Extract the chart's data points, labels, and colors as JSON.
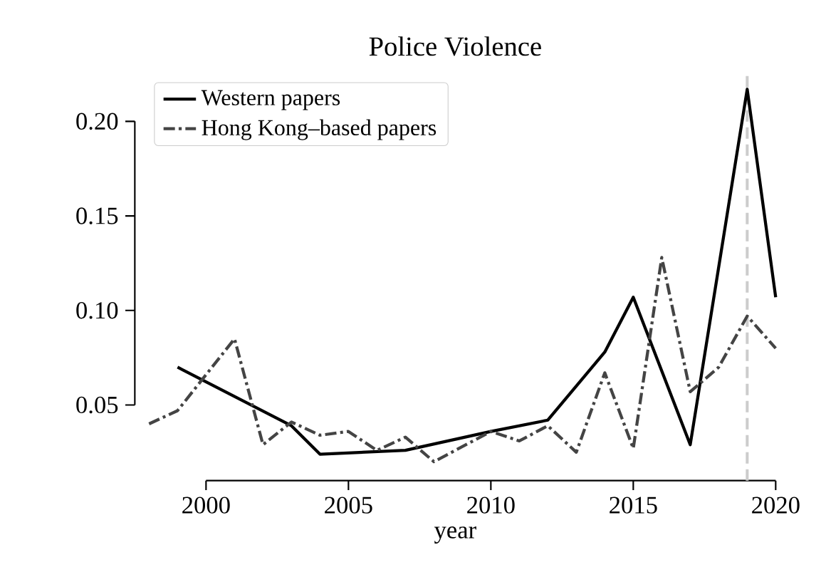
{
  "chart_data": {
    "type": "line",
    "title": "Police Violence",
    "xlabel": "year",
    "series": [
      {
        "name": "Western papers",
        "color": "#000000",
        "line_style": "solid",
        "x": [
          1999,
          2003,
          2004,
          2007,
          2010,
          2012,
          2014,
          2015,
          2017,
          2019,
          2020
        ],
        "values": [
          0.07,
          0.039,
          0.024,
          0.026,
          0.036,
          0.042,
          0.078,
          0.107,
          0.029,
          0.217,
          0.107
        ]
      },
      {
        "name": "Hong Kong–based papers",
        "color": "#444444",
        "line_style": "dashdot",
        "x": [
          1998,
          1999,
          2001,
          2002,
          2003,
          2004,
          2005,
          2006,
          2007,
          2008,
          2010,
          2011,
          2012,
          2013,
          2014,
          2015,
          2016,
          2017,
          2018,
          2019,
          2020
        ],
        "values": [
          0.04,
          0.047,
          0.085,
          0.029,
          0.041,
          0.034,
          0.036,
          0.026,
          0.033,
          0.02,
          0.036,
          0.031,
          0.039,
          0.025,
          0.067,
          0.027,
          0.128,
          0.057,
          0.07,
          0.097,
          0.08
        ]
      }
    ],
    "xlim": [
      1997.5,
      2020
    ],
    "ylim": [
      0.01,
      0.225
    ],
    "xticks": [
      2000,
      2005,
      2010,
      2015,
      2020
    ],
    "yticks": [
      {
        "value": 0.05,
        "label": "0.05"
      },
      {
        "value": 0.1,
        "label": "0.10"
      },
      {
        "value": 0.15,
        "label": "0.15"
      },
      {
        "value": 0.2,
        "label": "0.20"
      }
    ],
    "ref_lines": [
      {
        "axis": "x",
        "value": 2019,
        "color": "#cccccc",
        "line_style": "dashed"
      }
    ],
    "legend": "top left",
    "grid": false
  }
}
